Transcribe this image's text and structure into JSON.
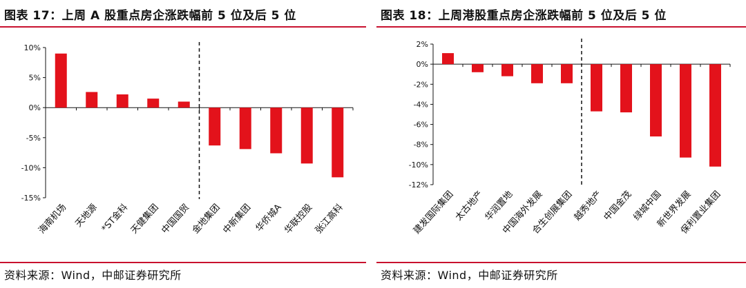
{
  "charts": [
    {
      "title": "图表 17：上周 A 股重点房企涨跌幅前 5 位及后 5 位",
      "source": "资料来源：Wind，中邮证券研究所"
    },
    {
      "title": "图表 18：上周港股重点房企涨跌幅前 5 位及后 5 位",
      "source": "资料来源：Wind，中邮证券研究所"
    }
  ],
  "colors": {
    "bar": "#e3121b",
    "rule": "#c8102e",
    "axis": "#111111"
  },
  "chart_data": [
    {
      "type": "bar",
      "title": "上周 A 股重点房企涨跌幅前 5 位及后 5 位",
      "categories": [
        "海南机场",
        "天地源",
        "*ST金科",
        "天健集团",
        "中国国贸",
        "金地集团",
        "中新集团",
        "华侨城A",
        "华联控股",
        "张江高科"
      ],
      "values": [
        9.0,
        2.6,
        2.2,
        1.5,
        1.0,
        -6.3,
        -6.9,
        -7.6,
        -9.3,
        -11.6
      ],
      "ylim": [
        -15,
        10
      ],
      "yticks": [
        10,
        5,
        0,
        -5,
        -10,
        -15
      ],
      "ytick_labels": [
        "10%",
        "5%",
        "0%",
        "-5%",
        "-10%",
        "-15%"
      ],
      "divider_after_index": 4,
      "xlabel": "",
      "ylabel": ""
    },
    {
      "type": "bar",
      "title": "上周港股重点房企涨跌幅前 5 位及后 5 位",
      "categories": [
        "建发国际集团",
        "太古地产",
        "华润置地",
        "中国海外发展",
        "合生创展集团",
        "越秀地产",
        "中国金茂",
        "绿城中国",
        "新世界发展",
        "保利置业集团"
      ],
      "values": [
        1.1,
        -0.8,
        -1.2,
        -1.9,
        -1.9,
        -4.7,
        -4.8,
        -7.2,
        -9.3,
        -10.2
      ],
      "ylim": [
        -12,
        2
      ],
      "yticks": [
        2,
        0,
        -2,
        -4,
        -6,
        -8,
        -10,
        -12
      ],
      "ytick_labels": [
        "2%",
        "0%",
        "-2%",
        "-4%",
        "-6%",
        "-8%",
        "-10%",
        "-12%"
      ],
      "divider_after_index": 4,
      "xlabel": "",
      "ylabel": ""
    }
  ]
}
